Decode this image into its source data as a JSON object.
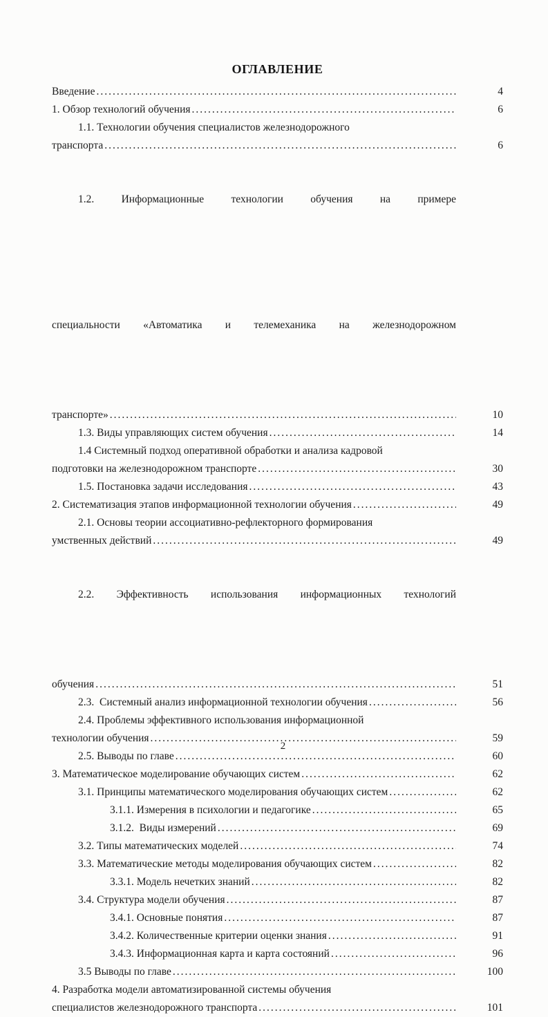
{
  "page": {
    "title": "ОГЛАВЛЕНИЕ",
    "footer_page_number": "2",
    "leader_dots": "......................................................................................................................................................",
    "colors": {
      "text": "#1c1c1c",
      "paper": "#fcfcfb"
    }
  },
  "toc": {
    "entries": [
      {
        "text": "Введение",
        "indent": 0,
        "dots": true,
        "justify": false,
        "page": "4"
      },
      {
        "text": "1. Обзор технологий обучения",
        "indent": 0,
        "dots": true,
        "justify": false,
        "page": "6"
      },
      {
        "text": "1.1. Технологии обучения специалистов железнодорожного",
        "indent": 1,
        "dots": false,
        "justify": false,
        "page": ""
      },
      {
        "text": "транспорта",
        "indent": 0,
        "dots": true,
        "justify": false,
        "page": "6"
      },
      {
        "text": "1.2. Информационные технологии обучения на примере",
        "indent": 1,
        "dots": false,
        "justify": true,
        "page": ""
      },
      {
        "text": "специальности «Автоматика и телемеханика на железнодорожном",
        "indent": 0,
        "dots": false,
        "justify": true,
        "page": ""
      },
      {
        "text": "транспорте»",
        "indent": 0,
        "dots": true,
        "justify": false,
        "page": "10"
      },
      {
        "text": "1.3. Виды управляющих систем обучения",
        "indent": 1,
        "dots": true,
        "justify": false,
        "page": "14"
      },
      {
        "text": "1.4 Системный подход оперативной обработки и анализа кадровой",
        "indent": 1,
        "dots": false,
        "justify": false,
        "page": ""
      },
      {
        "text": "подготовки на железнодорожном транспорте",
        "indent": 0,
        "dots": true,
        "justify": false,
        "page": "30"
      },
      {
        "text": "1.5. Постановка задачи исследования",
        "indent": 1,
        "dots": true,
        "justify": false,
        "page": "43"
      },
      {
        "text": "2. Систематизация этапов информационной технологии обучения",
        "indent": 0,
        "dots": true,
        "justify": false,
        "page": "49"
      },
      {
        "text": "2.1. Основы теории ассоциативно-рефлекторного формирования",
        "indent": 1,
        "dots": false,
        "justify": false,
        "page": ""
      },
      {
        "text": "умственных действий",
        "indent": 0,
        "dots": true,
        "justify": false,
        "page": "49"
      },
      {
        "text": "2.2. Эффективность использования информационных технологий",
        "indent": 1,
        "dots": false,
        "justify": true,
        "page": ""
      },
      {
        "text": "обучения",
        "indent": 0,
        "dots": true,
        "justify": false,
        "page": "51"
      },
      {
        "text": "2.3.  Системный анализ информационной технологии обучения",
        "indent": 1,
        "dots": true,
        "justify": false,
        "page": "56"
      },
      {
        "text": "2.4. Проблемы эффективного использования информационной",
        "indent": 1,
        "dots": false,
        "justify": false,
        "page": ""
      },
      {
        "text": "технологии обучения",
        "indent": 0,
        "dots": true,
        "justify": false,
        "page": "59"
      },
      {
        "text": "2.5. Выводы по главе",
        "indent": 1,
        "dots": true,
        "justify": false,
        "page": "60"
      },
      {
        "text": "3. Математическое моделирование обучающих систем",
        "indent": 0,
        "dots": true,
        "justify": false,
        "page": "62"
      },
      {
        "text": "3.1. Принципы математического моделирования обучающих систем",
        "indent": 1,
        "dots": true,
        "justify": false,
        "page": "62"
      },
      {
        "text": "3.1.1. Измерения в психологии и педагогике",
        "indent": 2,
        "dots": true,
        "justify": false,
        "page": "65"
      },
      {
        "text": "3.1.2.  Виды измерений",
        "indent": 2,
        "dots": true,
        "justify": false,
        "page": "69"
      },
      {
        "text": "3.2. Типы математических моделей",
        "indent": 1,
        "dots": true,
        "justify": false,
        "page": "74"
      },
      {
        "text": "3.3. Математические методы моделирования обучающих систем",
        "indent": 1,
        "dots": true,
        "justify": false,
        "page": "82"
      },
      {
        "text": "3.3.1. Модель нечетких знаний",
        "indent": 2,
        "dots": true,
        "justify": false,
        "page": "82"
      },
      {
        "text": "3.4. Структура модели обучения",
        "indent": 1,
        "dots": true,
        "justify": false,
        "page": "87"
      },
      {
        "text": "3.4.1. Основные понятия",
        "indent": 2,
        "dots": true,
        "justify": false,
        "page": "87"
      },
      {
        "text": "3.4.2. Количественные критерии оценки знания",
        "indent": 2,
        "dots": true,
        "justify": false,
        "page": "91"
      },
      {
        "text": "3.4.3. Информационная карта и карта состояний",
        "indent": 2,
        "dots": true,
        "justify": false,
        "page": "96"
      },
      {
        "text": "3.5 Выводы по главе",
        "indent": 1,
        "dots": true,
        "justify": false,
        "page": "100"
      },
      {
        "text": "4. Разработка модели автоматизированной системы обучения",
        "indent": 0,
        "dots": false,
        "justify": false,
        "page": ""
      },
      {
        "text": "специалистов железнодорожного транспорта",
        "indent": 0,
        "dots": true,
        "justify": false,
        "page": "101"
      }
    ]
  }
}
